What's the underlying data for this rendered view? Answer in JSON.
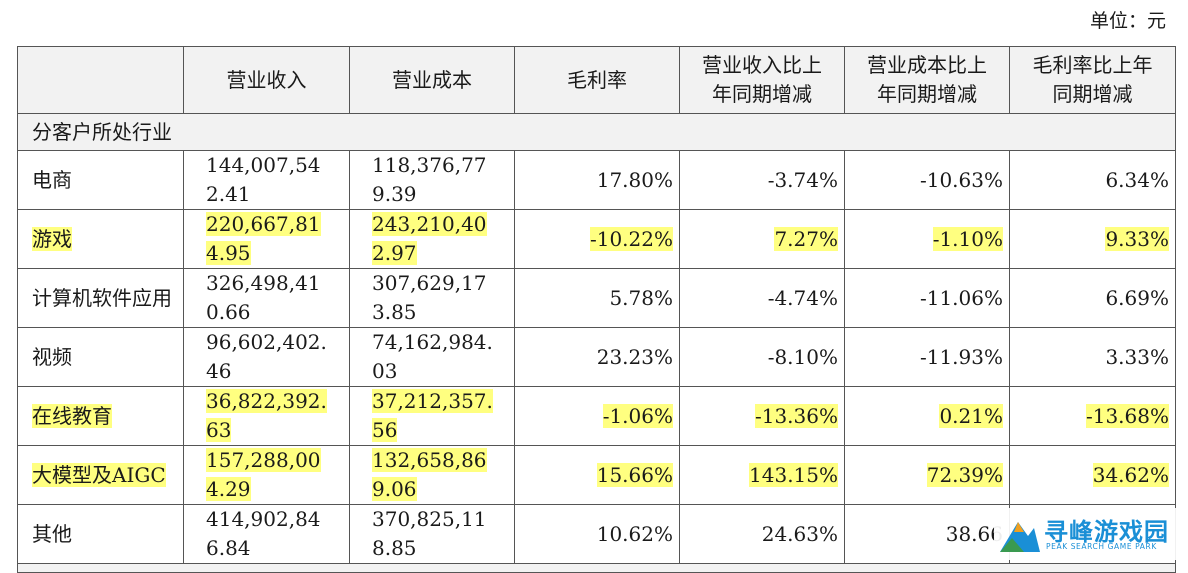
{
  "unit_label": "单位：元",
  "table": {
    "headers": [
      "",
      "营业收入",
      "营业成本",
      "毛利率",
      "营业收入比上年同期增减",
      "营业成本比上年同期增减",
      "毛利率比上年同期增减"
    ],
    "section_label": "分客户所处行业",
    "rows": [
      {
        "name": "电商",
        "revenue": "144,007,542.41",
        "cost": "118,376,779.39",
        "margin": "17.80%",
        "rev_change": "-3.74%",
        "cost_change": "-10.63%",
        "margin_change": "6.34%",
        "highlighted": false
      },
      {
        "name": "游戏",
        "revenue": "220,667,814.95",
        "cost": "243,210,402.97",
        "margin": "-10.22%",
        "rev_change": "7.27%",
        "cost_change": "-1.10%",
        "margin_change": "9.33%",
        "highlighted": true
      },
      {
        "name": "计算机软件应用",
        "revenue": "326,498,410.66",
        "cost": "307,629,173.85",
        "margin": "5.78%",
        "rev_change": "-4.74%",
        "cost_change": "-11.06%",
        "margin_change": "6.69%",
        "highlighted": false
      },
      {
        "name": "视频",
        "revenue": "96,602,402.46",
        "cost": "74,162,984.03",
        "margin": "23.23%",
        "rev_change": "-8.10%",
        "cost_change": "-11.93%",
        "margin_change": "3.33%",
        "highlighted": false
      },
      {
        "name": "在线教育",
        "revenue": "36,822,392.63",
        "cost": "37,212,357.56",
        "margin": "-1.06%",
        "rev_change": "-13.36%",
        "cost_change": "0.21%",
        "margin_change": "-13.68%",
        "highlighted": true
      },
      {
        "name": "大模型及AIGC",
        "revenue": "157,288,004.29",
        "cost": "132,658,869.06",
        "margin": "15.66%",
        "rev_change": "143.15%",
        "cost_change": "72.39%",
        "margin_change": "34.62%",
        "highlighted": true
      },
      {
        "name": "其他",
        "revenue": "414,902,846.84",
        "cost": "370,825,118.85",
        "margin": "10.62%",
        "rev_change": "24.63%",
        "cost_change": "38.66",
        "margin_change": "",
        "highlighted": false
      }
    ]
  },
  "watermark": {
    "title": "寻峰游戏园",
    "subtitle": "PEAK SEARCH GAME PARK",
    "colors": {
      "blue": "#1a8fd6",
      "orange": "#f0a020",
      "green": "#3a9a50"
    }
  },
  "colors": {
    "highlight": "#ffff80",
    "header_bg": "#f2f2f2",
    "border": "#555555"
  }
}
